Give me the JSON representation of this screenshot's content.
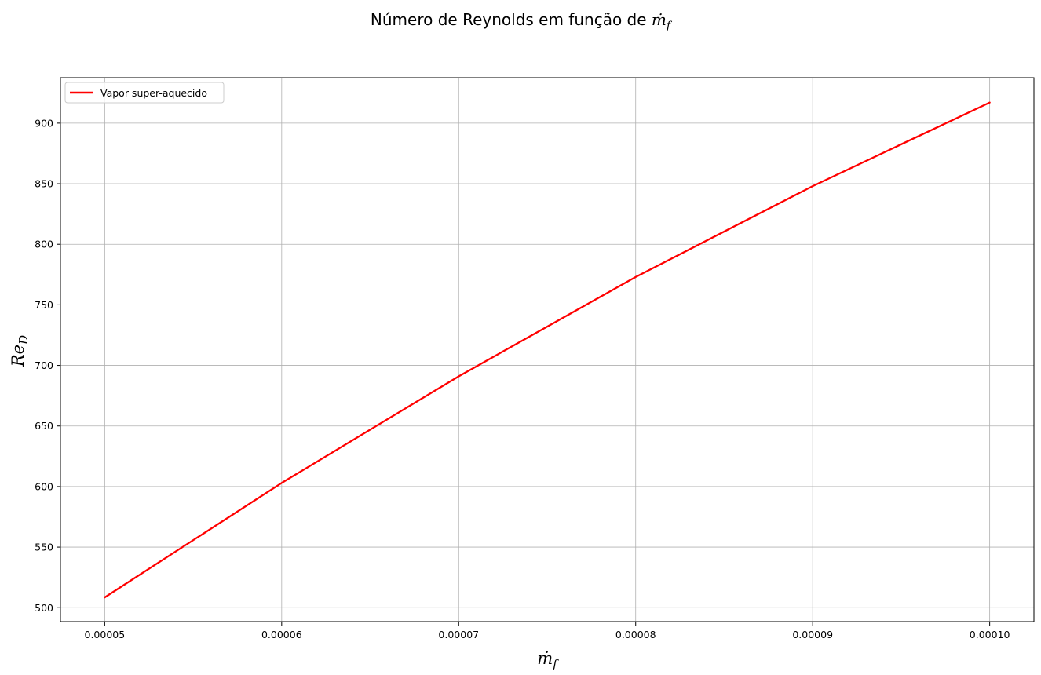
{
  "chart_data": {
    "type": "line",
    "title_prefix": "Número de Reynolds em função de ",
    "title_symbol": "ṁ",
    "title_subscript": "f",
    "xlabel_symbol": "ṁ",
    "xlabel_subscript": "f",
    "ylabel_symbol": "Re",
    "ylabel_subscript": "D",
    "xlim": [
      4.75e-05,
      0.0001025
    ],
    "ylim": [
      488.5,
      937.5
    ],
    "x_ticks": [
      5e-05,
      6e-05,
      7e-05,
      8e-05,
      9e-05,
      0.0001
    ],
    "x_tick_labels": [
      "0.00005",
      "0.00006",
      "0.00007",
      "0.00008",
      "0.00009",
      "0.00010"
    ],
    "y_ticks": [
      500,
      550,
      600,
      650,
      700,
      750,
      800,
      850,
      900
    ],
    "y_tick_labels": [
      "500",
      "550",
      "600",
      "650",
      "700",
      "750",
      "800",
      "850",
      "900"
    ],
    "grid": true,
    "legend_position": "top-left",
    "series": [
      {
        "name": "Vapor super-aquecido",
        "color": "#ff0000",
        "x": [
          5e-05,
          6e-05,
          7e-05,
          8e-05,
          9e-05,
          0.0001
        ],
        "y": [
          508.5,
          603,
          691,
          773,
          848,
          917
        ]
      }
    ]
  }
}
